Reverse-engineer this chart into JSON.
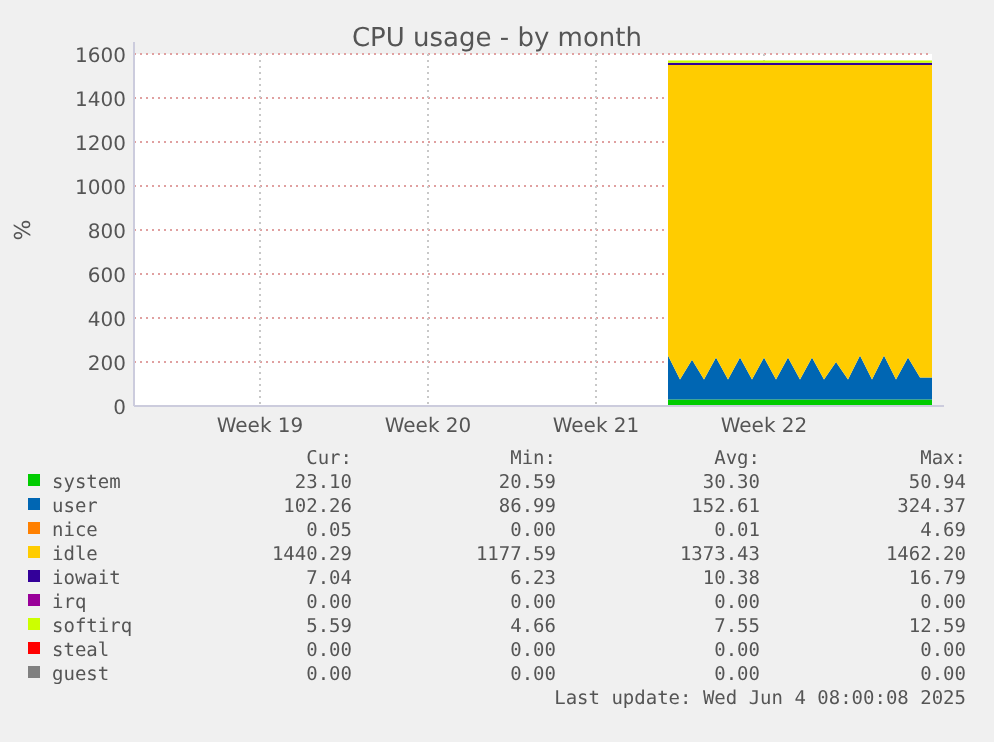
{
  "chart_data": {
    "type": "area",
    "stacked": true,
    "title": "CPU usage - by month",
    "ylabel": "%",
    "categories": [
      null,
      null,
      null,
      null,
      null,
      null,
      null,
      null,
      null,
      null,
      "Week 19",
      null,
      null,
      null,
      null,
      null,
      null,
      null,
      null,
      null,
      null,
      null,
      null,
      null,
      "Week 20",
      null,
      null,
      null,
      null,
      null,
      null,
      null,
      null,
      null,
      null,
      null,
      null,
      null,
      "Week 21",
      null,
      null,
      null,
      null,
      null,
      null,
      null,
      null,
      null,
      null,
      null,
      null,
      null,
      "Week 22",
      null,
      null,
      null,
      null,
      null,
      null,
      null,
      null,
      null,
      null,
      null,
      null,
      null,
      null
    ],
    "ylim": [
      0,
      1600
    ],
    "yticks": [
      0,
      200,
      400,
      600,
      800,
      1000,
      1200,
      1400,
      1600
    ],
    "grid": true,
    "legend": "bottom",
    "series": [
      {
        "name": "system",
        "color": "#00cc00",
        "values": [
          null,
          null,
          null,
          null,
          null,
          null,
          null,
          null,
          null,
          null,
          null,
          null,
          null,
          null,
          null,
          null,
          null,
          null,
          null,
          null,
          null,
          null,
          null,
          null,
          null,
          null,
          null,
          null,
          null,
          null,
          null,
          null,
          null,
          null,
          null,
          null,
          null,
          null,
          null,
          null,
          null,
          null,
          null,
          null,
          30,
          30,
          30,
          30,
          30,
          30,
          30,
          30,
          30,
          30,
          30,
          30,
          30,
          30,
          30,
          30,
          30,
          30,
          30,
          30,
          30,
          30,
          30
        ]
      },
      {
        "name": "user",
        "color": "#0066b3",
        "values": [
          null,
          null,
          null,
          null,
          null,
          null,
          null,
          null,
          null,
          null,
          null,
          null,
          null,
          null,
          null,
          null,
          null,
          null,
          null,
          null,
          null,
          null,
          null,
          null,
          null,
          null,
          null,
          null,
          null,
          null,
          null,
          null,
          null,
          null,
          null,
          null,
          null,
          null,
          null,
          null,
          null,
          null,
          null,
          null,
          200,
          90,
          180,
          90,
          190,
          90,
          190,
          90,
          190,
          90,
          190,
          90,
          190,
          90,
          170,
          90,
          200,
          90,
          200,
          90,
          190,
          100,
          100
        ]
      },
      {
        "name": "nice",
        "color": "#ff8000",
        "values": [
          null,
          null,
          null,
          null,
          null,
          null,
          null,
          null,
          null,
          null,
          null,
          null,
          null,
          null,
          null,
          null,
          null,
          null,
          null,
          null,
          null,
          null,
          null,
          null,
          null,
          null,
          null,
          null,
          null,
          null,
          null,
          null,
          null,
          null,
          null,
          null,
          null,
          null,
          null,
          null,
          null,
          null,
          null,
          null,
          null,
          null,
          null,
          null,
          null,
          null,
          null,
          null,
          null,
          null,
          null,
          null,
          null,
          null,
          null,
          null,
          null,
          null,
          null,
          null,
          null,
          null,
          null
        ]
      },
      {
        "name": "idle",
        "color": "#ffcc00",
        "values": [
          null,
          null,
          null,
          null,
          null,
          null,
          null,
          null,
          null,
          null,
          null,
          null,
          null,
          null,
          null,
          null,
          null,
          null,
          null,
          null,
          null,
          null,
          null,
          null,
          null,
          null,
          null,
          null,
          null,
          null,
          null,
          null,
          null,
          null,
          null,
          null,
          null,
          null,
          null,
          null,
          null,
          null,
          null,
          null,
          1320,
          1430,
          1340,
          1430,
          1330,
          1430,
          1330,
          1430,
          1330,
          1430,
          1330,
          1430,
          1330,
          1430,
          1350,
          1430,
          1320,
          1430,
          1320,
          1430,
          1330,
          1420,
          1420
        ]
      },
      {
        "name": "iowait",
        "color": "#330099",
        "values": [
          null,
          null,
          null,
          null,
          null,
          null,
          null,
          null,
          null,
          null,
          null,
          null,
          null,
          null,
          null,
          null,
          null,
          null,
          null,
          null,
          null,
          null,
          null,
          null,
          null,
          null,
          null,
          null,
          null,
          null,
          null,
          null,
          null,
          null,
          null,
          null,
          null,
          null,
          null,
          null,
          null,
          null,
          null,
          null,
          10,
          10,
          10,
          10,
          10,
          10,
          10,
          10,
          10,
          10,
          10,
          10,
          10,
          10,
          10,
          10,
          10,
          10,
          10,
          10,
          10,
          10,
          10
        ]
      },
      {
        "name": "irq",
        "color": "#990099",
        "values": [
          null,
          null,
          null,
          null,
          null,
          null,
          null,
          null,
          null,
          null,
          null,
          null,
          null,
          null,
          null,
          null,
          null,
          null,
          null,
          null,
          null,
          null,
          null,
          null,
          null,
          null,
          null,
          null,
          null,
          null,
          null,
          null,
          null,
          null,
          null,
          null,
          null,
          null,
          null,
          null,
          null,
          null,
          null,
          null,
          null,
          null,
          null,
          null,
          null,
          null,
          null,
          null,
          null,
          null,
          null,
          null,
          null,
          null,
          null,
          null,
          null,
          null,
          null,
          null,
          null,
          null,
          null
        ]
      },
      {
        "name": "softirq",
        "color": "#ccff00",
        "values": [
          null,
          null,
          null,
          null,
          null,
          null,
          null,
          null,
          null,
          null,
          null,
          null,
          null,
          null,
          null,
          null,
          null,
          null,
          null,
          null,
          null,
          null,
          null,
          null,
          null,
          null,
          null,
          null,
          null,
          null,
          null,
          null,
          null,
          null,
          null,
          null,
          null,
          null,
          null,
          null,
          null,
          null,
          null,
          null,
          10,
          10,
          10,
          10,
          10,
          10,
          10,
          10,
          10,
          10,
          10,
          10,
          10,
          10,
          10,
          10,
          10,
          10,
          10,
          10,
          10,
          10,
          10
        ]
      },
      {
        "name": "steal",
        "color": "#ff0000",
        "values": [
          null,
          null,
          null,
          null,
          null,
          null,
          null,
          null,
          null,
          null,
          null,
          null,
          null,
          null,
          null,
          null,
          null,
          null,
          null,
          null,
          null,
          null,
          null,
          null,
          null,
          null,
          null,
          null,
          null,
          null,
          null,
          null,
          null,
          null,
          null,
          null,
          null,
          null,
          null,
          null,
          null,
          null,
          null,
          null,
          null,
          null,
          null,
          null,
          null,
          null,
          null,
          null,
          null,
          null,
          null,
          null,
          null,
          null,
          null,
          null,
          null,
          null,
          null,
          null,
          null,
          null,
          null
        ]
      },
      {
        "name": "guest",
        "color": "#808080",
        "values": [
          null,
          null,
          null,
          null,
          null,
          null,
          null,
          null,
          null,
          null,
          null,
          null,
          null,
          null,
          null,
          null,
          null,
          null,
          null,
          null,
          null,
          null,
          null,
          null,
          null,
          null,
          null,
          null,
          null,
          null,
          null,
          null,
          null,
          null,
          null,
          null,
          null,
          null,
          null,
          null,
          null,
          null,
          null,
          null,
          null,
          null,
          null,
          null,
          null,
          null,
          null,
          null,
          null,
          null,
          null,
          null,
          null,
          null,
          null,
          null,
          null,
          null,
          null,
          null,
          null,
          null,
          null
        ]
      }
    ],
    "annotations": [
      "Cur:",
      "Min:",
      "Avg:",
      "Max:",
      "23.10",
      "20.59",
      "30.30",
      "50.94",
      "102.26",
      "86.99",
      "152.61",
      "324.37",
      "0.05",
      "0.00",
      "0.01",
      "4.69",
      "1440.29",
      "1177.59",
      "1373.43",
      "1462.20",
      "7.04",
      "6.23",
      "10.38",
      "16.79",
      "0.00",
      "0.00",
      "0.00",
      "0.00",
      "5.59",
      "4.66",
      "7.55",
      "12.59",
      "0.00",
      "0.00",
      "0.00",
      "0.00",
      "0.00",
      "0.00",
      "0.00",
      "0.00",
      "Last update: Wed Jun  4 08:00:08 2025"
    ]
  }
}
